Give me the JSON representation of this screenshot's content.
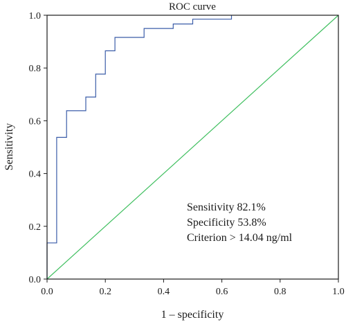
{
  "chart_data": {
    "type": "line",
    "title": "ROC curve",
    "xlabel": "1 – specificity",
    "ylabel": "Sensitivity",
    "xlim": [
      0,
      1
    ],
    "ylim": [
      0,
      1
    ],
    "x_ticks": [
      "0.0",
      "0.2",
      "0.4",
      "0.6",
      "0.8",
      "1.0"
    ],
    "y_ticks": [
      "0.0",
      "0.2",
      "0.4",
      "0.6",
      "0.8",
      "1.0"
    ],
    "grid": false,
    "series": [
      {
        "color": "#3a5ca8",
        "step": true,
        "x": [
          0,
          0,
          0.033,
          0.033,
          0.067,
          0.067,
          0.133,
          0.133,
          0.167,
          0.167,
          0.2,
          0.2,
          0.233,
          0.233,
          0.333,
          0.333,
          0.433,
          0.433,
          0.5,
          0.5,
          0.633,
          0.633
        ],
        "y": [
          0,
          0.137,
          0.137,
          0.537,
          0.537,
          0.638,
          0.638,
          0.69,
          0.69,
          0.777,
          0.777,
          0.865,
          0.865,
          0.916,
          0.916,
          0.95,
          0.95,
          0.967,
          0.967,
          0.985,
          0.985,
          1.0
        ]
      },
      {
        "color": "#3fbf5f",
        "x": [
          0,
          1
        ],
        "y": [
          0,
          1
        ]
      }
    ],
    "annotations": [
      "Sensitivity 82.1%",
      "Specificity 53.8%",
      "Criterion > 14.04 ng/ml"
    ]
  }
}
